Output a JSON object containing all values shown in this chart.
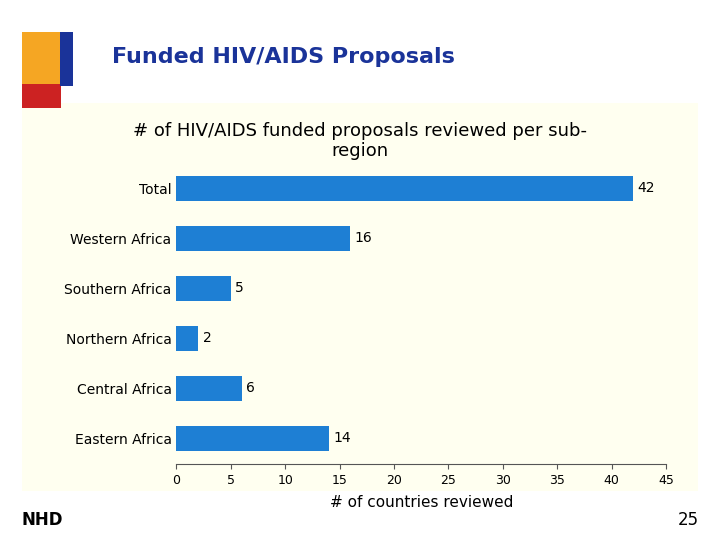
{
  "title": "# of HIV/AIDS funded proposals reviewed per sub-\nregion",
  "slide_title": "Funded HIV/AIDS Proposals",
  "categories": [
    "Total",
    "Western Africa",
    "Southern Africa",
    "Northern Africa",
    "Central Africa",
    "Eastern Africa"
  ],
  "values": [
    42,
    16,
    5,
    2,
    6,
    14
  ],
  "bar_color": "#1e7fd4",
  "xlabel": "# of countries reviewed",
  "xlim": [
    0,
    45
  ],
  "xticks": [
    0,
    5,
    10,
    15,
    20,
    25,
    30,
    35,
    40,
    45
  ],
  "background_color": "#fffff0",
  "slide_bg": "#ffffff",
  "title_fontsize": 13,
  "slide_title_fontsize": 16,
  "label_fontsize": 10,
  "tick_fontsize": 9,
  "xlabel_fontsize": 11,
  "nhd_text": "NHD",
  "page_num": "25",
  "title_color": "#1a3399",
  "nhd_color": "#000000",
  "bar_label_fontsize": 10,
  "deco_yellow": "#f5a623",
  "deco_blue": "#1a3399",
  "deco_red": "#cc2222"
}
